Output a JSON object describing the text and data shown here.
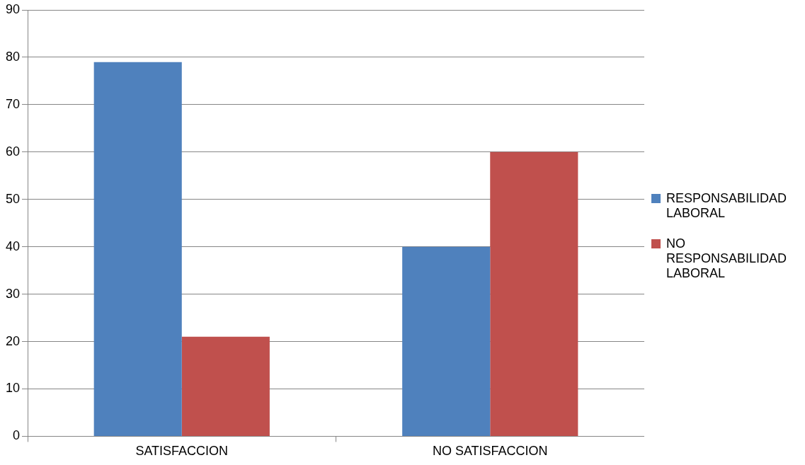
{
  "chart_data": {
    "type": "bar",
    "categories": [
      "SATISFACCION",
      "NO SATISFACCION"
    ],
    "series": [
      {
        "name": "RESPONSABILIDAD LABORAL",
        "color": "#4f81bd",
        "values": [
          79,
          40
        ]
      },
      {
        "name": "NO RESPONSABILIDAD LABORAL",
        "color": "#c0504d",
        "values": [
          21,
          60
        ]
      }
    ],
    "ylim": [
      0,
      90
    ],
    "yticks": [
      0,
      10,
      20,
      30,
      40,
      50,
      60,
      70,
      80,
      90
    ],
    "grid": "y",
    "legend": "right"
  }
}
